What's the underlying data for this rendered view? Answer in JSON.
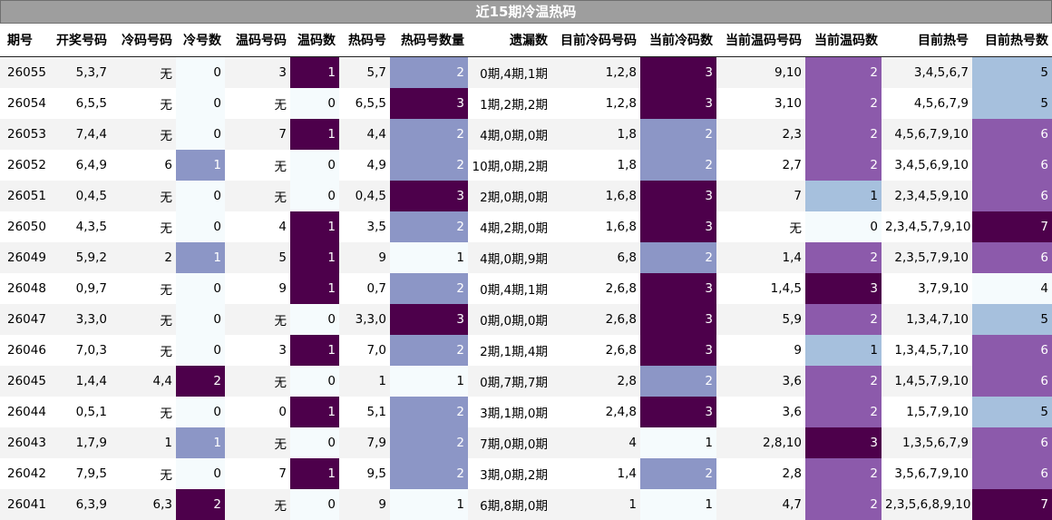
{
  "title": "近15期冷温热码",
  "headers": [
    "期号",
    "开奖号码",
    "冷码号码",
    "冷号数",
    "温码号码",
    "温码数",
    "热码号",
    "热码号数量",
    "遗漏数",
    "目前冷码号码",
    "当前冷码数",
    "当前温码号码",
    "当前温码数",
    "目前热号",
    "目前热号数"
  ],
  "rows": [
    [
      "26055",
      "5,3,7",
      "无",
      "0",
      "3",
      "1",
      "5,7",
      "2",
      "0期,4期,1期",
      "1,2,8",
      "3",
      "9,10",
      "2",
      "3,4,5,6,7",
      "5"
    ],
    [
      "26054",
      "6,5,5",
      "无",
      "0",
      "无",
      "0",
      "6,5,5",
      "3",
      "1期,2期,2期",
      "1,2,8",
      "3",
      "3,10",
      "2",
      "4,5,6,7,9",
      "5"
    ],
    [
      "26053",
      "7,4,4",
      "无",
      "0",
      "7",
      "1",
      "4,4",
      "2",
      "4期,0期,0期",
      "1,8",
      "2",
      "2,3",
      "2",
      "4,5,6,7,9,10",
      "6"
    ],
    [
      "26052",
      "6,4,9",
      "6",
      "1",
      "无",
      "0",
      "4,9",
      "2",
      "10期,0期,2期",
      "1,8",
      "2",
      "2,7",
      "2",
      "3,4,5,6,9,10",
      "6"
    ],
    [
      "26051",
      "0,4,5",
      "无",
      "0",
      "无",
      "0",
      "0,4,5",
      "3",
      "2期,0期,0期",
      "1,6,8",
      "3",
      "7",
      "1",
      "2,3,4,5,9,10",
      "6"
    ],
    [
      "26050",
      "4,3,5",
      "无",
      "0",
      "4",
      "1",
      "3,5",
      "2",
      "4期,2期,0期",
      "1,6,8",
      "3",
      "无",
      "0",
      "2,3,4,5,7,9,10",
      "7"
    ],
    [
      "26049",
      "5,9,2",
      "2",
      "1",
      "5",
      "1",
      "9",
      "1",
      "4期,0期,9期",
      "6,8",
      "2",
      "1,4",
      "2",
      "2,3,5,7,9,10",
      "6"
    ],
    [
      "26048",
      "0,9,7",
      "无",
      "0",
      "9",
      "1",
      "0,7",
      "2",
      "0期,4期,1期",
      "2,6,8",
      "3",
      "1,4,5",
      "3",
      "3,7,9,10",
      "4"
    ],
    [
      "26047",
      "3,3,0",
      "无",
      "0",
      "无",
      "0",
      "3,3,0",
      "3",
      "0期,0期,0期",
      "2,6,8",
      "3",
      "5,9",
      "2",
      "1,3,4,7,10",
      "5"
    ],
    [
      "26046",
      "7,0,3",
      "无",
      "0",
      "3",
      "1",
      "7,0",
      "2",
      "2期,1期,4期",
      "2,6,8",
      "3",
      "9",
      "1",
      "1,3,4,5,7,10",
      "6"
    ],
    [
      "26045",
      "1,4,4",
      "4,4",
      "2",
      "无",
      "0",
      "1",
      "1",
      "0期,7期,7期",
      "2,8",
      "2",
      "3,6",
      "2",
      "1,4,5,7,9,10",
      "6"
    ],
    [
      "26044",
      "0,5,1",
      "无",
      "0",
      "0",
      "1",
      "5,1",
      "2",
      "3期,1期,0期",
      "2,4,8",
      "3",
      "3,6",
      "2",
      "1,5,7,9,10",
      "5"
    ],
    [
      "26043",
      "1,7,9",
      "1",
      "1",
      "无",
      "0",
      "7,9",
      "2",
      "7期,0期,0期",
      "4",
      "1",
      "2,8,10",
      "3",
      "1,3,5,6,7,9",
      "6"
    ],
    [
      "26042",
      "7,9,5",
      "无",
      "0",
      "7",
      "1",
      "9,5",
      "2",
      "3期,0期,2期",
      "1,4",
      "2",
      "2,8",
      "2",
      "3,5,6,7,9,10",
      "6"
    ],
    [
      "26041",
      "6,3,9",
      "6,3",
      "2",
      "无",
      "0",
      "9",
      "1",
      "6期,8期,0期",
      "1",
      "1",
      "4,7",
      "2",
      "2,3,5,6,8,9,10",
      "7"
    ]
  ],
  "colors": {
    "title_bg": "#9e9e9e",
    "light": "#f5fbfd",
    "blue_mid": "#8c96c6",
    "blue_light": "#a6c0dd",
    "purple_mid": "#8c5aab",
    "purple_dark": "#4d004b"
  }
}
